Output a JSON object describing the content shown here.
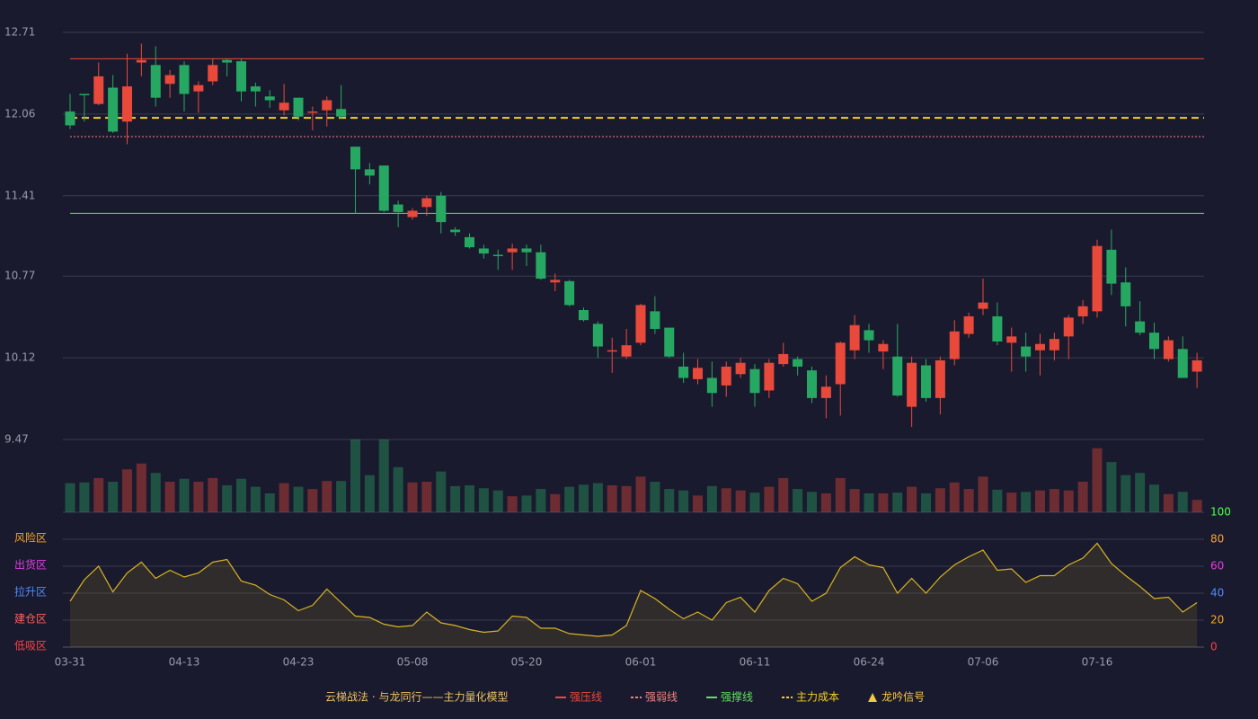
{
  "chart_data": {
    "type": "candlestick",
    "categories": [
      "03-31",
      null,
      null,
      null,
      null,
      null,
      null,
      null,
      "04-13",
      null,
      null,
      null,
      null,
      null,
      null,
      null,
      "04-23",
      null,
      null,
      null,
      null,
      null,
      null,
      null,
      "05-08",
      null,
      null,
      null,
      null,
      null,
      null,
      null,
      "05-20",
      null,
      null,
      null,
      null,
      null,
      null,
      null,
      "06-01",
      null,
      null,
      null,
      null,
      null,
      null,
      null,
      "06-11",
      null,
      null,
      null,
      null,
      null,
      null,
      null,
      "06-24",
      null,
      null,
      null,
      null,
      null,
      null,
      null,
      "07-06",
      null,
      null,
      null,
      null,
      null,
      null,
      null,
      "07-16",
      null,
      null,
      null,
      null,
      null,
      null,
      null
    ],
    "open": [
      12.08,
      12.22,
      12.14,
      12.27,
      12.0,
      12.47,
      12.45,
      12.3,
      12.45,
      12.24,
      12.32,
      12.49,
      12.48,
      12.28,
      12.2,
      12.09,
      12.19,
      12.07,
      12.09,
      12.1,
      11.8,
      11.62,
      11.65,
      11.34,
      11.24,
      11.32,
      11.41,
      11.14,
      11.08,
      10.99,
      10.94,
      10.96,
      10.99,
      10.96,
      10.72,
      10.73,
      10.5,
      10.39,
      10.17,
      10.13,
      10.24,
      10.49,
      10.36,
      10.05,
      9.95,
      9.96,
      9.9,
      9.99,
      10.03,
      9.86,
      10.07,
      10.11,
      10.02,
      9.8,
      9.91,
      10.18,
      10.34,
      10.17,
      10.13,
      9.73,
      10.06,
      9.8,
      10.11,
      10.31,
      10.51,
      10.45,
      10.24,
      10.21,
      10.18,
      10.18,
      10.29,
      10.45,
      10.49,
      10.98,
      10.72,
      10.41,
      10.32,
      10.11,
      10.19,
      10.01
    ],
    "high": [
      12.22,
      12.22,
      12.47,
      12.37,
      12.54,
      12.62,
      12.6,
      12.41,
      12.48,
      12.32,
      12.5,
      12.5,
      12.5,
      12.31,
      12.25,
      12.3,
      12.19,
      12.12,
      12.2,
      12.29,
      11.8,
      11.67,
      11.65,
      11.37,
      11.31,
      11.41,
      11.44,
      11.16,
      11.11,
      11.02,
      10.98,
      11.03,
      11.02,
      11.02,
      10.79,
      10.74,
      10.52,
      10.41,
      10.28,
      10.35,
      10.55,
      10.61,
      10.36,
      10.16,
      10.11,
      10.09,
      10.09,
      10.12,
      10.07,
      10.11,
      10.24,
      10.13,
      10.05,
      9.98,
      10.25,
      10.46,
      10.39,
      10.26,
      10.39,
      10.13,
      10.11,
      10.13,
      10.42,
      10.48,
      10.75,
      10.56,
      10.36,
      10.32,
      10.31,
      10.32,
      10.46,
      10.58,
      11.06,
      11.14,
      10.84,
      10.57,
      10.4,
      10.29,
      10.29,
      10.16
    ],
    "low": [
      11.94,
      12.0,
      12.13,
      11.91,
      11.82,
      12.36,
      12.12,
      12.19,
      12.08,
      12.07,
      12.29,
      12.36,
      12.16,
      12.12,
      12.11,
      12.05,
      12.01,
      11.93,
      11.96,
      12.02,
      11.27,
      11.5,
      11.28,
      11.16,
      11.22,
      11.25,
      11.11,
      11.09,
      10.99,
      10.91,
      10.82,
      10.82,
      10.85,
      10.74,
      10.65,
      10.53,
      10.41,
      10.12,
      10.0,
      10.11,
      10.22,
      10.31,
      10.12,
      9.92,
      9.91,
      9.73,
      9.81,
      9.96,
      9.73,
      9.8,
      10.05,
      9.98,
      9.76,
      9.64,
      9.66,
      10.11,
      10.16,
      10.03,
      9.81,
      9.57,
      9.77,
      9.67,
      10.06,
      10.28,
      10.46,
      10.22,
      10.01,
      10.01,
      9.98,
      10.1,
      10.11,
      10.39,
      10.44,
      10.62,
      10.37,
      10.3,
      10.11,
      10.09,
      9.96,
      9.88
    ],
    "close": [
      11.97,
      12.21,
      12.36,
      11.92,
      12.28,
      12.49,
      12.19,
      12.37,
      12.22,
      12.29,
      12.45,
      12.47,
      12.24,
      12.24,
      12.17,
      12.15,
      12.04,
      12.08,
      12.17,
      12.04,
      11.62,
      11.57,
      11.29,
      11.28,
      11.29,
      11.39,
      11.2,
      11.12,
      11.0,
      10.95,
      10.93,
      10.99,
      10.96,
      10.75,
      10.74,
      10.54,
      10.42,
      10.21,
      10.18,
      10.22,
      10.54,
      10.35,
      10.13,
      9.96,
      10.04,
      9.84,
      10.05,
      10.08,
      9.84,
      10.08,
      10.15,
      10.05,
      9.8,
      9.89,
      10.24,
      10.38,
      10.26,
      10.23,
      9.82,
      10.08,
      9.8,
      10.1,
      10.33,
      10.45,
      10.56,
      10.25,
      10.29,
      10.13,
      10.23,
      10.27,
      10.44,
      10.53,
      11.01,
      10.71,
      10.53,
      10.32,
      10.19,
      10.26,
      9.96,
      10.1
    ],
    "ylim": [
      9.47,
      12.71
    ],
    "yticks": [
      12.71,
      12.06,
      11.41,
      10.77,
      10.12,
      9.47
    ],
    "up_color": "#e8493a",
    "down_color": "#27a862",
    "lines": [
      {
        "name": "强压线",
        "value": 12.5,
        "color": "#e8493a",
        "style": "solid"
      },
      {
        "name": "强弱线",
        "value": 11.88,
        "color": "#f08080",
        "style": "dotted"
      },
      {
        "name": "强撑线",
        "value": 11.27,
        "color": "#5ee05e",
        "style": "solid"
      },
      {
        "name": "主力成本",
        "value": 12.03,
        "color": "#f5d020",
        "style": "dashed"
      }
    ],
    "signal": {
      "name": "龙吟信号",
      "color": "#f5c842"
    },
    "legend_title": "云梯战法 · 与龙同行——主力量化模型",
    "volume": {
      "ylim": [
        0,
        100
      ],
      "values": [
        40,
        41,
        47,
        42,
        59,
        67,
        54,
        42,
        46,
        42,
        47,
        37,
        46,
        35,
        26,
        40,
        35,
        32,
        43,
        43,
        100,
        51,
        100,
        62,
        41,
        42,
        56,
        36,
        37,
        33,
        30,
        22,
        23,
        32,
        25,
        35,
        38,
        40,
        37,
        36,
        49,
        42,
        32,
        30,
        23,
        36,
        33,
        30,
        27,
        35,
        47,
        32,
        28,
        26,
        47,
        32,
        26,
        26,
        27,
        35,
        26,
        33,
        41,
        32,
        49,
        31,
        27,
        28,
        30,
        32,
        30,
        42,
        88,
        69,
        51,
        54,
        38,
        25,
        28,
        17
      ]
    },
    "oscillator": {
      "ylim": [
        0,
        100
      ],
      "color": "#d8b420",
      "values": [
        34,
        50,
        60,
        41,
        55,
        63,
        51,
        57,
        52,
        55,
        63,
        65,
        49,
        46,
        39,
        35,
        27,
        31,
        43,
        33,
        23,
        22,
        17,
        15,
        16,
        26,
        18,
        16,
        13,
        11,
        12,
        23,
        22,
        14,
        14,
        10,
        9,
        8,
        9,
        16,
        42,
        36,
        28,
        21,
        26,
        20,
        33,
        37,
        26,
        42,
        51,
        47,
        34,
        40,
        59,
        67,
        61,
        59,
        40,
        51,
        40,
        52,
        61,
        67,
        72,
        57,
        58,
        48,
        53,
        53,
        61,
        66,
        77,
        62,
        53,
        45,
        36,
        37,
        26,
        33
      ],
      "yticks": [
        100,
        80,
        60,
        40,
        20,
        0
      ],
      "tick_colors": [
        "#4cff4c",
        "#f5a623",
        "#e040e0",
        "#4a8cff",
        "#f5a623",
        "#ff4040"
      ],
      "zones": [
        {
          "label": "风险区",
          "value": 80,
          "color": "#f5a623"
        },
        {
          "label": "出货区",
          "value": 60,
          "color": "#e040e0"
        },
        {
          "label": "拉升区",
          "value": 40,
          "color": "#4a8cff"
        },
        {
          "label": "建仓区",
          "value": 20,
          "color": "#ff6060"
        },
        {
          "label": "低吸区",
          "value": 0,
          "color": "#ff4040"
        }
      ]
    }
  }
}
